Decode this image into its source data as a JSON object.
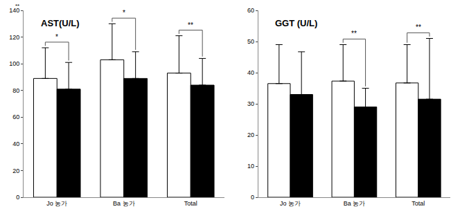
{
  "chart_data": [
    {
      "type": "bar",
      "title": "AST(U/L)",
      "categories": [
        "Jo 농가",
        "Ba 농가",
        "Total"
      ],
      "series": [
        {
          "color": "#ffffff",
          "values": [
            89,
            103,
            93
          ],
          "errors": [
            23,
            27,
            28
          ]
        },
        {
          "color": "#000000",
          "values": [
            81,
            89,
            84
          ],
          "errors": [
            20,
            20,
            20
          ]
        }
      ],
      "significance": [
        "*",
        "*",
        "**"
      ],
      "annotations": [
        "**"
      ],
      "ylim": [
        0,
        140
      ],
      "yticks": [
        0,
        20,
        40,
        60,
        80,
        100,
        120,
        140
      ],
      "grid": false
    },
    {
      "type": "bar",
      "title": "GGT (U/L)",
      "categories": [
        "Jo 농가",
        "Ba 농가",
        "Total"
      ],
      "series": [
        {
          "color": "#ffffff",
          "values": [
            36.5,
            37.3,
            36.7
          ],
          "errors": [
            12.5,
            11.7,
            12.3
          ]
        },
        {
          "color": "#000000",
          "values": [
            33,
            29,
            31.5
          ],
          "errors": [
            13.7,
            6,
            19.5
          ]
        }
      ],
      "significance": [
        null,
        "**",
        "**"
      ],
      "ylim": [
        0,
        60
      ],
      "yticks": [
        0,
        10,
        20,
        30,
        40,
        50,
        60
      ],
      "grid": false
    }
  ]
}
